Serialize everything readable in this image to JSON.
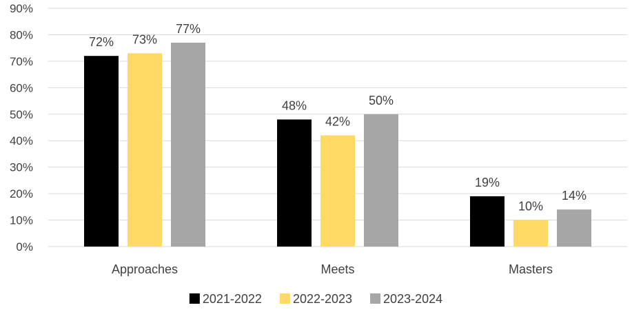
{
  "chart_data": {
    "type": "bar",
    "title": "",
    "xlabel": "",
    "ylabel": "",
    "categories": [
      "Approaches",
      "Meets",
      "Masters"
    ],
    "series": [
      {
        "name": "2021-2022",
        "values": [
          72,
          48,
          19
        ],
        "labels": [
          "72%",
          "48%",
          "19%"
        ],
        "color": "#000000"
      },
      {
        "name": "2022-2023",
        "values": [
          73,
          42,
          10
        ],
        "labels": [
          "73%",
          "42%",
          "10%"
        ],
        "color": "#FFD966"
      },
      {
        "name": "2023-2024",
        "values": [
          77,
          50,
          14
        ],
        "labels": [
          "77%",
          "50%",
          "14%"
        ],
        "color": "#A6A6A6"
      }
    ],
    "ylim": [
      0,
      90
    ],
    "yticks": [
      0,
      10,
      20,
      30,
      40,
      50,
      60,
      70,
      80,
      90
    ],
    "ytick_labels": [
      "0%",
      "10%",
      "20%",
      "30%",
      "40%",
      "50%",
      "60%",
      "70%",
      "80%",
      "90%"
    ],
    "grid": true,
    "legend_position": "bottom"
  }
}
